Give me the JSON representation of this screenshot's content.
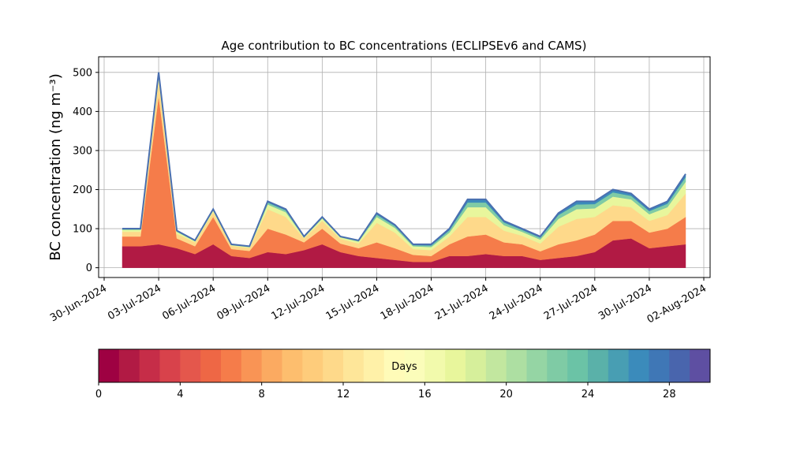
{
  "chart_data": {
    "type": "stacked_area",
    "title": "Age contribution to BC concentrations (ECLIPSEv6 and CAMS)",
    "y_label": "BC concentration (ng m⁻³)",
    "x": [
      "2024-07-01",
      "2024-07-02",
      "2024-07-03",
      "2024-07-04",
      "2024-07-05",
      "2024-07-06",
      "2024-07-07",
      "2024-07-08",
      "2024-07-09",
      "2024-07-10",
      "2024-07-11",
      "2024-07-12",
      "2024-07-13",
      "2024-07-14",
      "2024-07-15",
      "2024-07-16",
      "2024-07-17",
      "2024-07-18",
      "2024-07-19",
      "2024-07-20",
      "2024-07-21",
      "2024-07-22",
      "2024-07-23",
      "2024-07-24",
      "2024-07-25",
      "2024-07-26",
      "2024-07-27",
      "2024-07-28",
      "2024-07-29",
      "2024-07-30",
      "2024-07-31",
      "2024-08-01"
    ],
    "series": [
      {
        "color": "#b11a44",
        "values": [
          55,
          55,
          60,
          50,
          35,
          60,
          30,
          25,
          40,
          35,
          45,
          60,
          40,
          30,
          25,
          20,
          15,
          15,
          30,
          30,
          35,
          30,
          30,
          20,
          25,
          30,
          40,
          70,
          75,
          50,
          55,
          60
        ]
      },
      {
        "color": "#f57c4a",
        "values": [
          25,
          25,
          380,
          25,
          20,
          70,
          18,
          18,
          60,
          50,
          20,
          40,
          22,
          20,
          40,
          30,
          18,
          15,
          30,
          50,
          50,
          35,
          30,
          22,
          35,
          40,
          45,
          50,
          45,
          40,
          45,
          70
        ]
      },
      {
        "color": "#fed98a",
        "values": [
          12,
          12,
          40,
          12,
          10,
          12,
          8,
          8,
          50,
          45,
          10,
          20,
          12,
          12,
          50,
          40,
          15,
          15,
          20,
          50,
          45,
          30,
          22,
          20,
          45,
          55,
          45,
          40,
          35,
          30,
          35,
          60
        ]
      },
      {
        "color": "#e8f69c",
        "values": [
          5,
          5,
          12,
          5,
          3,
          5,
          2,
          2,
          12,
          12,
          3,
          6,
          4,
          5,
          15,
          12,
          7,
          8,
          10,
          25,
          25,
          14,
          10,
          10,
          20,
          25,
          22,
          22,
          20,
          17,
          20,
          30
        ]
      },
      {
        "color": "#7fcba5",
        "values": [
          2,
          2,
          5,
          2,
          1,
          2,
          1,
          1,
          5,
          5,
          1,
          3,
          1,
          2,
          6,
          5,
          3,
          4,
          6,
          12,
          12,
          7,
          5,
          5,
          10,
          12,
          11,
          11,
          9,
          8,
          9,
          12
        ]
      },
      {
        "color": "#3b8bbb",
        "values": [
          1,
          1,
          3,
          1,
          1,
          1,
          1,
          1,
          3,
          3,
          1,
          1,
          1,
          1,
          4,
          3,
          2,
          3,
          4,
          8,
          8,
          4,
          3,
          3,
          5,
          8,
          7,
          7,
          6,
          5,
          6,
          8
        ]
      }
    ],
    "line_color": "#4a6fb0",
    "xlim": [
      "2024-06-30",
      "2024-08-02"
    ],
    "xticks": [
      {
        "value": "2024-06-30",
        "label": "30-Jun-2024"
      },
      {
        "value": "2024-07-03",
        "label": "03-Jul-2024"
      },
      {
        "value": "2024-07-06",
        "label": "06-Jul-2024"
      },
      {
        "value": "2024-07-09",
        "label": "09-Jul-2024"
      },
      {
        "value": "2024-07-12",
        "label": "12-Jul-2024"
      },
      {
        "value": "2024-07-15",
        "label": "15-Jul-2024"
      },
      {
        "value": "2024-07-18",
        "label": "18-Jul-2024"
      },
      {
        "value": "2024-07-21",
        "label": "21-Jul-2024"
      },
      {
        "value": "2024-07-24",
        "label": "24-Jul-2024"
      },
      {
        "value": "2024-07-27",
        "label": "27-Jul-2024"
      },
      {
        "value": "2024-07-30",
        "label": "30-Jul-2024"
      },
      {
        "value": "2024-08-02",
        "label": "02-Aug-2024"
      }
    ],
    "ylim": [
      -25,
      540
    ],
    "yticks": [
      0,
      100,
      200,
      300,
      400,
      500
    ],
    "grid": true,
    "colorbar": {
      "label": "Days",
      "lim": [
        0,
        30
      ],
      "ticks": [
        0,
        4,
        8,
        12,
        16,
        20,
        24,
        28
      ],
      "colors": [
        "#9e0142",
        "#b11a44",
        "#c62d48",
        "#d8424b",
        "#e4574c",
        "#ee6745",
        "#f57c4a",
        "#f99455",
        "#fbaa61",
        "#fdbe6e",
        "#fecc7b",
        "#fed98a",
        "#fee699",
        "#fff1a8",
        "#fffbb8",
        "#fbfdba",
        "#f2faac",
        "#e8f69c",
        "#d6ef9b",
        "#c2e79f",
        "#addfa2",
        "#95d5a4",
        "#7fcba5",
        "#6bc3a6",
        "#5ab1a9",
        "#489eb3",
        "#3b8bbb",
        "#3f77b6",
        "#4965ad",
        "#5e4fa2"
      ]
    }
  }
}
